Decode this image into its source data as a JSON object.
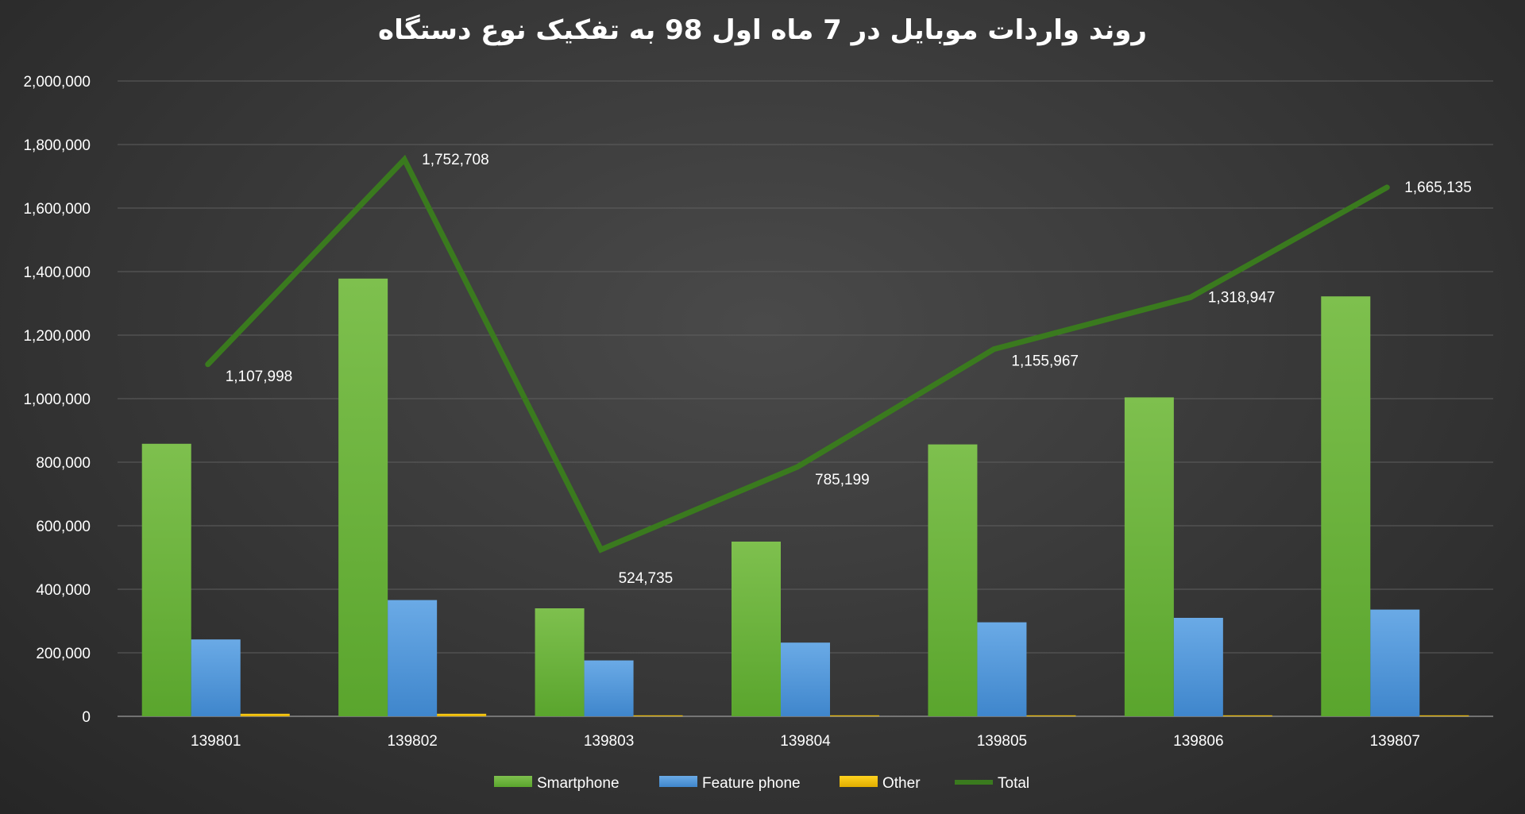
{
  "chart_data": {
    "type": "bar",
    "title": "روند واردات موبایل در 7 ماه اول 98 به تفکیک نوع دستگاه",
    "xlabel": "",
    "ylabel": "",
    "categories": [
      "139801",
      "139802",
      "139803",
      "139804",
      "139805",
      "139806",
      "139807"
    ],
    "ylim": [
      0,
      2000000
    ],
    "yticks": [
      0,
      200000,
      400000,
      600000,
      800000,
      1000000,
      1200000,
      1400000,
      1600000,
      1800000,
      2000000
    ],
    "ytick_labels": [
      "0",
      "200,000",
      "400,000",
      "600,000",
      "800,000",
      "1,000,000",
      "1,200,000",
      "1,400,000",
      "1,600,000",
      "1,800,000",
      "2,000,000"
    ],
    "grid": true,
    "legend_position": "bottom",
    "series": [
      {
        "name": "Smartphone",
        "kind": "bar",
        "color": "#6fb63f",
        "values": [
          858000,
          1378000,
          340000,
          550000,
          856000,
          1004000,
          1322000
        ]
      },
      {
        "name": "Feature phone",
        "kind": "bar",
        "color": "#5b9bd5",
        "values": [
          242000,
          366000,
          176000,
          232000,
          296000,
          310000,
          336000
        ]
      },
      {
        "name": "Other",
        "kind": "bar",
        "color": "#f2c200",
        "values": [
          8000,
          8000,
          3000,
          3000,
          3000,
          3000,
          3000
        ]
      },
      {
        "name": "Total",
        "kind": "line",
        "color": "#3a7a1e",
        "values": [
          1107998,
          1752708,
          524735,
          785199,
          1155967,
          1318947,
          1665135
        ],
        "labels": [
          "1,107,998",
          "1,752,708",
          "524,735",
          "785,199",
          "1,155,967",
          "1,318,947",
          "1,665,135"
        ]
      }
    ]
  }
}
